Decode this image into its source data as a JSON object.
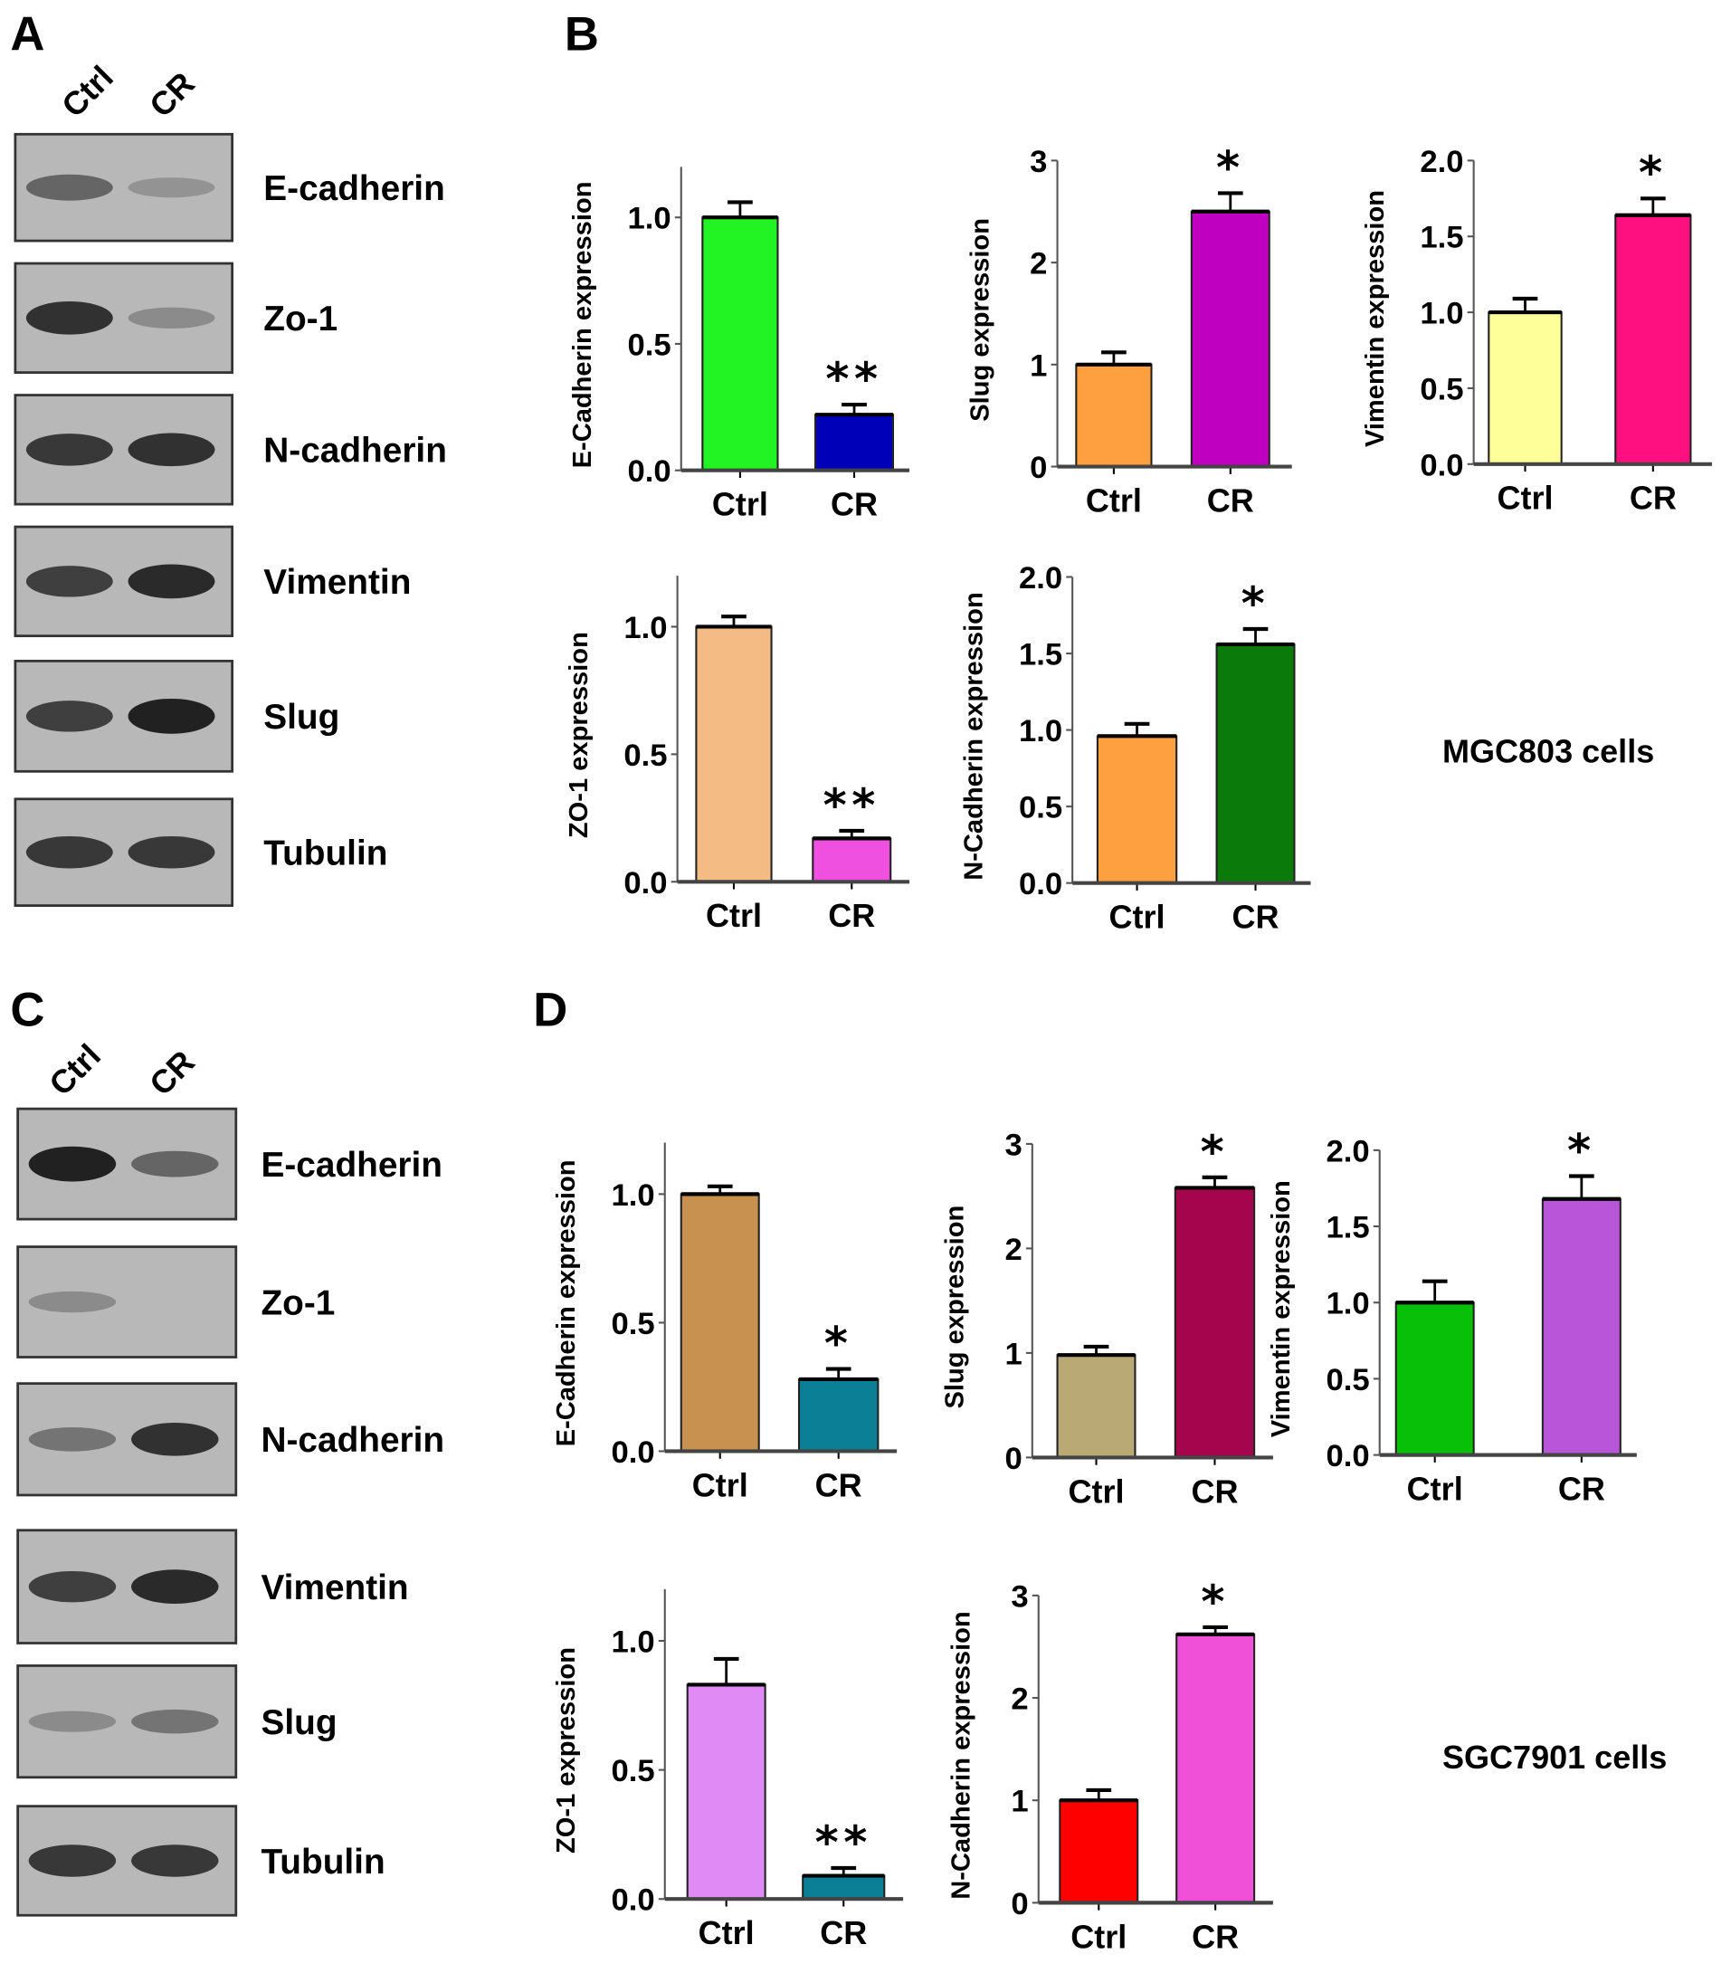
{
  "panels": {
    "A": "A",
    "B": "B",
    "C": "C",
    "D": "D"
  },
  "lanes": [
    "Ctrl",
    "CR"
  ],
  "blots": [
    {
      "panel": "A",
      "rows": [
        {
          "label": "E-cadherin",
          "intensity": [
            0.55,
            0.25
          ]
        },
        {
          "label": "Zo-1",
          "intensity": [
            0.9,
            0.3
          ]
        },
        {
          "label": "N-cadherin",
          "intensity": [
            0.85,
            0.9
          ]
        },
        {
          "label": "Vimentin",
          "intensity": [
            0.8,
            0.95
          ]
        },
        {
          "label": "Slug",
          "intensity": [
            0.8,
            1.0
          ]
        },
        {
          "label": "Tubulin",
          "intensity": [
            0.85,
            0.85
          ]
        }
      ]
    },
    {
      "panel": "C",
      "rows": [
        {
          "label": "E-cadherin",
          "intensity": [
            1.0,
            0.55
          ]
        },
        {
          "label": "Zo-1",
          "intensity": [
            0.3,
            0.0
          ]
        },
        {
          "label": "N-cadherin",
          "intensity": [
            0.45,
            0.9
          ]
        },
        {
          "label": "Vimentin",
          "intensity": [
            0.8,
            0.95
          ]
        },
        {
          "label": "Slug",
          "intensity": [
            0.3,
            0.45
          ]
        },
        {
          "label": "Tubulin",
          "intensity": [
            0.85,
            0.85
          ]
        }
      ]
    }
  ],
  "cell_labels": {
    "B": "MGC803 cells",
    "D": "SGC7901 cells"
  },
  "chart_data": [
    {
      "panel": "B",
      "type": "bar",
      "ylabel": "E-Cadherin expression",
      "categories": [
        "Ctrl",
        "CR"
      ],
      "values": [
        1.0,
        0.22
      ],
      "errors": [
        0.06,
        0.04
      ],
      "colors": [
        "#22f322",
        "#0000b8"
      ],
      "significance": [
        "",
        "**"
      ],
      "ylim": [
        0,
        1.2
      ],
      "yticks": [
        "0.0",
        "0.5",
        "1.0"
      ],
      "ytick_values": [
        0,
        0.5,
        1.0
      ]
    },
    {
      "panel": "B",
      "type": "bar",
      "ylabel": "Slug expression",
      "categories": [
        "Ctrl",
        "CR"
      ],
      "values": [
        1.0,
        2.5
      ],
      "errors": [
        0.12,
        0.18
      ],
      "colors": [
        "#ffa040",
        "#c000c0"
      ],
      "significance": [
        "",
        "*"
      ],
      "ylim": [
        0,
        3
      ],
      "yticks": [
        "0",
        "1",
        "2",
        "3"
      ],
      "ytick_values": [
        0,
        1,
        2,
        3
      ]
    },
    {
      "panel": "B",
      "type": "bar",
      "ylabel": "Vimentin expression",
      "categories": [
        "Ctrl",
        "CR"
      ],
      "values": [
        1.0,
        1.64
      ],
      "errors": [
        0.09,
        0.11
      ],
      "colors": [
        "#ffff99",
        "#ff1080"
      ],
      "significance": [
        "",
        "*"
      ],
      "ylim": [
        0,
        2
      ],
      "yticks": [
        "0.0",
        "0.5",
        "1.0",
        "1.5",
        "2.0"
      ],
      "ytick_values": [
        0,
        0.5,
        1.0,
        1.5,
        2.0
      ]
    },
    {
      "panel": "B",
      "type": "bar",
      "ylabel": "ZO-1 expression",
      "categories": [
        "Ctrl",
        "CR"
      ],
      "values": [
        1.0,
        0.17
      ],
      "errors": [
        0.04,
        0.03
      ],
      "colors": [
        "#f4bb84",
        "#f050e0"
      ],
      "significance": [
        "",
        "**"
      ],
      "ylim": [
        0,
        1.2
      ],
      "yticks": [
        "0.0",
        "0.5",
        "1.0"
      ],
      "ytick_values": [
        0,
        0.5,
        1.0
      ]
    },
    {
      "panel": "B",
      "type": "bar",
      "ylabel": "N-Cadherin expression",
      "categories": [
        "Ctrl",
        "CR"
      ],
      "values": [
        0.96,
        1.56
      ],
      "errors": [
        0.08,
        0.1
      ],
      "colors": [
        "#ffa040",
        "#0a7a0a"
      ],
      "significance": [
        "",
        "*"
      ],
      "ylim": [
        0,
        2
      ],
      "yticks": [
        "0.0",
        "0.5",
        "1.0",
        "1.5",
        "2.0"
      ],
      "ytick_values": [
        0,
        0.5,
        1.0,
        1.5,
        2.0
      ]
    },
    {
      "panel": "D",
      "type": "bar",
      "ylabel": "E-Cadherin expression",
      "categories": [
        "Ctrl",
        "CR"
      ],
      "values": [
        1.0,
        0.28
      ],
      "errors": [
        0.03,
        0.04
      ],
      "colors": [
        "#c8914f",
        "#0a7f95"
      ],
      "significance": [
        "",
        "*"
      ],
      "ylim": [
        0,
        1.2
      ],
      "yticks": [
        "0.0",
        "0.5",
        "1.0"
      ],
      "ytick_values": [
        0,
        0.5,
        1.0
      ]
    },
    {
      "panel": "D",
      "type": "bar",
      "ylabel": "Slug expression",
      "categories": [
        "Ctrl",
        "CR"
      ],
      "values": [
        0.98,
        2.58
      ],
      "errors": [
        0.08,
        0.1
      ],
      "colors": [
        "#b9a975",
        "#a5054d"
      ],
      "significance": [
        "",
        "*"
      ],
      "ylim": [
        0,
        3
      ],
      "yticks": [
        "0",
        "1",
        "2",
        "3"
      ],
      "ytick_values": [
        0,
        1,
        2,
        3
      ]
    },
    {
      "panel": "D",
      "type": "bar",
      "ylabel": "Vimentin expression",
      "categories": [
        "Ctrl",
        "CR"
      ],
      "values": [
        1.0,
        1.68
      ],
      "errors": [
        0.14,
        0.15
      ],
      "colors": [
        "#08c008",
        "#b855d8"
      ],
      "significance": [
        "",
        "*"
      ],
      "ylim": [
        0,
        2
      ],
      "yticks": [
        "0.0",
        "0.5",
        "1.0",
        "1.5",
        "2.0"
      ],
      "ytick_values": [
        0,
        0.5,
        1.0,
        1.5,
        2.0
      ]
    },
    {
      "panel": "D",
      "type": "bar",
      "ylabel": "ZO-1 expression",
      "categories": [
        "Ctrl",
        "CR"
      ],
      "values": [
        0.83,
        0.09
      ],
      "errors": [
        0.1,
        0.03
      ],
      "colors": [
        "#e08af5",
        "#0a7f95"
      ],
      "significance": [
        "",
        "**"
      ],
      "ylim": [
        0,
        1.2
      ],
      "yticks": [
        "0.0",
        "0.5",
        "1.0"
      ],
      "ytick_values": [
        0,
        0.5,
        1.0
      ]
    },
    {
      "panel": "D",
      "type": "bar",
      "ylabel": "N-Cadherin expression",
      "categories": [
        "Ctrl",
        "CR"
      ],
      "values": [
        1.0,
        2.62
      ],
      "errors": [
        0.1,
        0.07
      ],
      "colors": [
        "#ff0000",
        "#f050d8"
      ],
      "significance": [
        "",
        "*"
      ],
      "ylim": [
        0,
        3
      ],
      "yticks": [
        "0",
        "1",
        "2",
        "3"
      ],
      "ytick_values": [
        0,
        1,
        2,
        3
      ]
    }
  ]
}
